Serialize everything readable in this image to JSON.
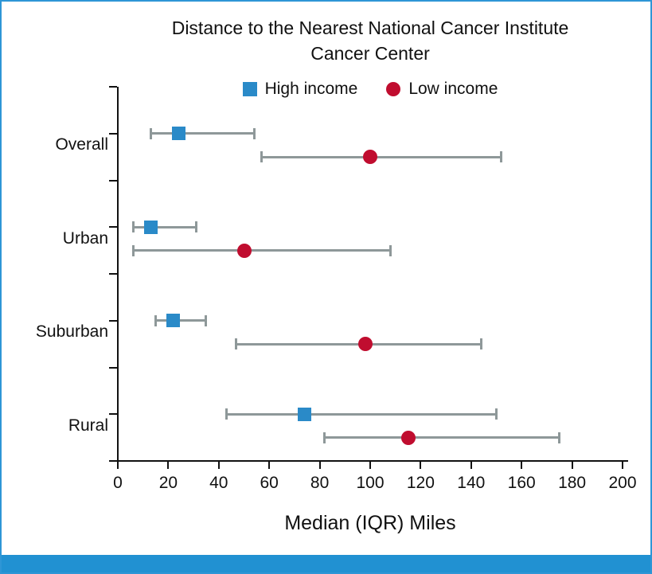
{
  "figure": {
    "border_color": "#2e96d6",
    "footer_color": "#2191d2",
    "background": "#ffffff",
    "text_color": "#111111"
  },
  "display": {
    "title_line1": "Distance to the Nearest National Cancer Institute",
    "title_line2": "Cancer Center"
  },
  "chart_data": {
    "type": "scatter",
    "subtype": "dot-plot-with-iqr-error-bars",
    "title": "Distance to the Nearest National Cancer Institute Cancer Center",
    "xlabel": "Median (IQR) Miles",
    "ylabel": "",
    "categories": [
      "Overall",
      "Urban",
      "Suburban",
      "Rural"
    ],
    "xlim": [
      0,
      200
    ],
    "x_ticks": [
      0,
      20,
      40,
      60,
      80,
      100,
      120,
      140,
      160,
      180,
      200
    ],
    "grid": false,
    "legend_position": "top-center",
    "error_bar_color": "#8e9899",
    "series": [
      {
        "name": "High income",
        "marker": "square",
        "color": "#2a8ac8",
        "points": [
          {
            "category": "Overall",
            "median": 24,
            "iqr_low": 13,
            "iqr_high": 54
          },
          {
            "category": "Urban",
            "median": 13,
            "iqr_low": 6,
            "iqr_high": 31
          },
          {
            "category": "Suburban",
            "median": 22,
            "iqr_low": 15,
            "iqr_high": 35
          },
          {
            "category": "Rural",
            "median": 74,
            "iqr_low": 43,
            "iqr_high": 150
          }
        ]
      },
      {
        "name": "Low income",
        "marker": "circle",
        "color": "#c00d2f",
        "points": [
          {
            "category": "Overall",
            "median": 100,
            "iqr_low": 57,
            "iqr_high": 152
          },
          {
            "category": "Urban",
            "median": 50,
            "iqr_low": 6,
            "iqr_high": 108
          },
          {
            "category": "Suburban",
            "median": 98,
            "iqr_low": 47,
            "iqr_high": 144
          },
          {
            "category": "Rural",
            "median": 115,
            "iqr_low": 82,
            "iqr_high": 175
          }
        ]
      }
    ]
  }
}
